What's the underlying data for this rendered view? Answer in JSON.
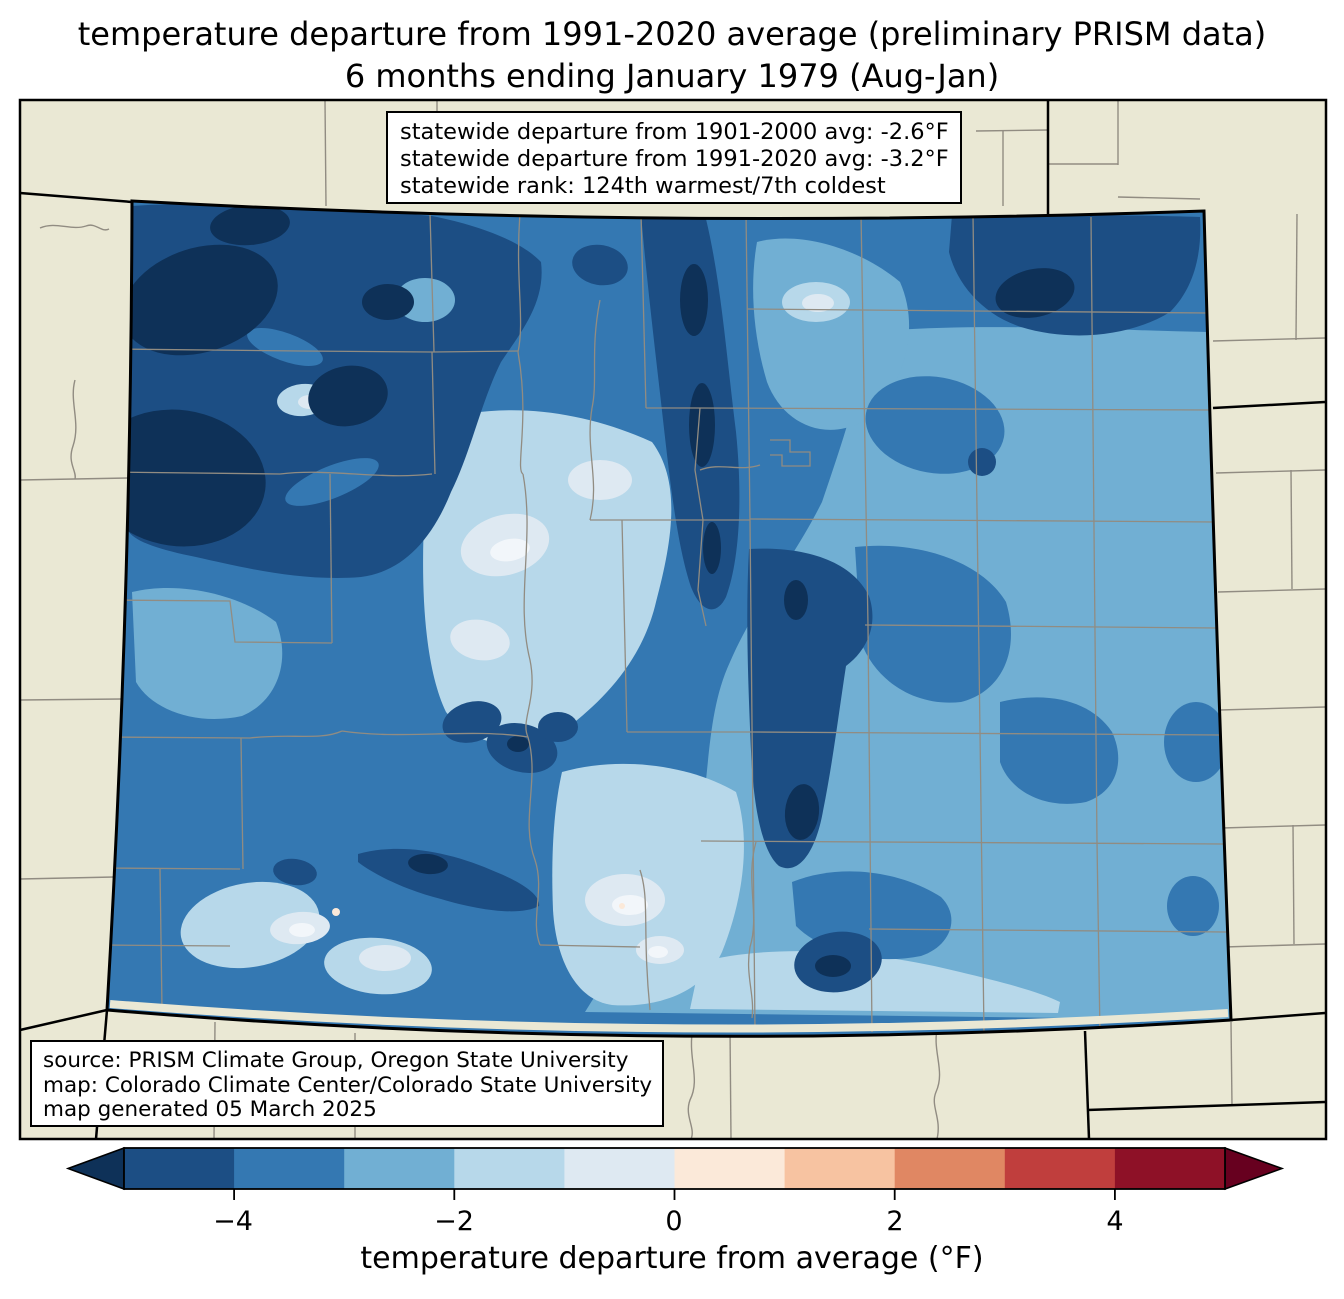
{
  "title": {
    "line1": "temperature departure from 1991-2020 average (preliminary PRISM data)",
    "line2": "6 months ending January 1979 (Aug-Jan)"
  },
  "stats_box": {
    "line1": "statewide departure from 1901-2000 avg: -2.6°F",
    "line2": "statewide departure from 1991-2020 avg: -3.2°F",
    "line3": "statewide rank: 124th warmest/7th coldest"
  },
  "source_box": {
    "line1": "source: PRISM Climate Group, Oregon State University",
    "line2": "map: Colorado Climate Center/Colorado State University",
    "line3": "map generated 05 March 2025"
  },
  "colorbar": {
    "label": "temperature departure from average (°F)",
    "tick_labels": [
      "−4",
      "−2",
      "0",
      "2",
      "4"
    ],
    "tick_values": [
      -4,
      -2,
      0,
      2,
      4
    ],
    "range": [
      -5,
      5
    ],
    "under_color": "#0e3158",
    "over_color": "#67001f",
    "segment_colors": [
      "#1c4e84",
      "#3478b2",
      "#71afd3",
      "#b7d8ea",
      "#dee9f2",
      "#fbe9d9",
      "#f7c3a1",
      "#e08763",
      "#c03e3d",
      "#8e1127"
    ],
    "segment_bounds": [
      -5,
      -4,
      -3,
      -2,
      -1,
      0,
      1,
      2,
      3,
      4,
      5
    ]
  },
  "map": {
    "region": "Colorado",
    "background_color": "#eae8d4",
    "state_border_color": "#000000",
    "county_line_color": "#918c82",
    "palette": {
      "u": "#0e3158",
      "l1": "#1c4e84",
      "l2": "#3478b2",
      "l3": "#71afd3",
      "l4": "#b7d8ea",
      "l5": "#dee9f2",
      "l6": "#f2f6fa",
      "w1": "#fbe9d9"
    },
    "legend_levels": [
      {
        "range": "below -5°F",
        "color": "#0e3158"
      },
      {
        "range": "-5 to -4°F",
        "color": "#1c4e84"
      },
      {
        "range": "-4 to -3°F",
        "color": "#3478b2"
      },
      {
        "range": "-3 to -2°F",
        "color": "#71afd3"
      },
      {
        "range": "-2 to -1°F",
        "color": "#b7d8ea"
      },
      {
        "range": "-1 to 0°F",
        "color": "#dee9f2"
      },
      {
        "range": "0 to 1°F",
        "color": "#fbe9d9"
      }
    ]
  },
  "chart_data": {
    "type": "choropleth-map",
    "title": "temperature departure from 1991-2020 average (preliminary PRISM data) — 6 months ending January 1979 (Aug-Jan)",
    "region": "Colorado",
    "variable": "temperature departure from average (°F)",
    "colorbar_range": [
      -5,
      5
    ],
    "colorbar_ticks": [
      -4,
      -2,
      0,
      2,
      4
    ],
    "statewide_departure_1901_2000_F": -2.6,
    "statewide_departure_1991_2020_F": -3.2,
    "statewide_rank": "124th warmest/7th coldest",
    "map_generated": "05 March 2025",
    "dominant_levels": "entire state between 0 and -5+°F (all blues); coldest (< -5°F) in northwest corner and Front Range / Sangre de Cristo ridges; least cold (-1 to 0°F) in central mountain valleys and San Luis Valley"
  }
}
